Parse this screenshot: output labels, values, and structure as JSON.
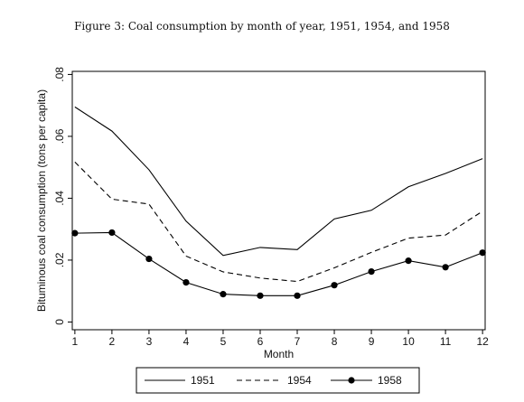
{
  "page": {
    "figure_title": "Figure 3: Coal consumption by month of year, 1951, 1954, and 1958"
  },
  "chart_data": {
    "type": "line",
    "title": "Figure 3: Coal consumption by month of year, 1951, 1954, and 1958",
    "xlabel": "Month",
    "ylabel": "Bituminous coal consumption (tons per capita)",
    "x": [
      1,
      2,
      3,
      4,
      5,
      6,
      7,
      8,
      9,
      10,
      11,
      12
    ],
    "xticks": [
      "1",
      "2",
      "3",
      "4",
      "5",
      "6",
      "7",
      "8",
      "9",
      "10",
      "11",
      "12"
    ],
    "yticks": [
      0,
      0.02,
      0.04,
      0.06,
      0.08
    ],
    "ytick_labels": [
      "0",
      ".02",
      ".04",
      ".06",
      ".08"
    ],
    "xlim": [
      0.93,
      12.07
    ],
    "ylim": [
      -0.0025,
      0.081
    ],
    "grid": false,
    "legend_position": "bottom",
    "series": [
      {
        "name": "1951",
        "style": "solid",
        "markers": false,
        "color": "#000000",
        "values": [
          0.0695,
          0.0617,
          0.0492,
          0.0326,
          0.0215,
          0.0241,
          0.0234,
          0.0333,
          0.0361,
          0.0437,
          0.048,
          0.0528
        ]
      },
      {
        "name": "1954",
        "style": "dashed",
        "markers": false,
        "color": "#000000",
        "values": [
          0.0517,
          0.0397,
          0.0381,
          0.0213,
          0.0162,
          0.0142,
          0.0131,
          0.0175,
          0.0225,
          0.0271,
          0.0281,
          0.0358
        ]
      },
      {
        "name": "1958",
        "style": "solid",
        "markers": true,
        "color": "#000000",
        "values": [
          0.0287,
          0.0289,
          0.0204,
          0.0128,
          0.009,
          0.0085,
          0.0085,
          0.0119,
          0.0163,
          0.0198,
          0.0177,
          0.0224
        ]
      }
    ]
  }
}
